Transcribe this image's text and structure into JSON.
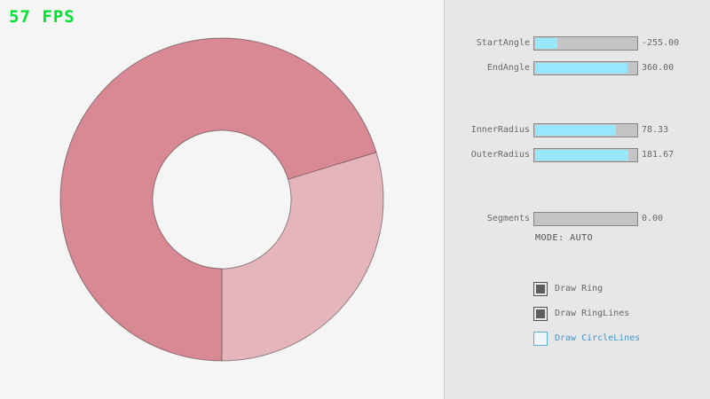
{
  "fps_counter": {
    "text": "57 FPS",
    "color": "#00e430"
  },
  "ring": {
    "overlap_fill_color": "#d98994",
    "single_fill_color": "#e5b5bc",
    "outline_color": "rgba(0,0,0,0.4)"
  },
  "controls": {
    "accent_fill_color": "#97e8ff",
    "focus_blue_color": "#5bb2d9",
    "sliders": [
      {
        "label": "StartAngle",
        "value": "-255.00",
        "fill_pct": 21.67
      },
      {
        "label": "EndAngle",
        "value": "360.00",
        "fill_pct": 90.0
      },
      {
        "label": "InnerRadius",
        "value": "78.33",
        "fill_pct": 78.33
      },
      {
        "label": "OuterRadius",
        "value": "181.67",
        "fill_pct": 90.84
      },
      {
        "label": "Segments",
        "value": "0.00",
        "fill_pct": 0
      }
    ],
    "mode_label": "MODE: AUTO",
    "checkboxes": [
      {
        "label": "Draw Ring",
        "checked": true
      },
      {
        "label": "Draw RingLines",
        "checked": true
      },
      {
        "label": "Draw CircleLines",
        "checked": false
      }
    ]
  }
}
